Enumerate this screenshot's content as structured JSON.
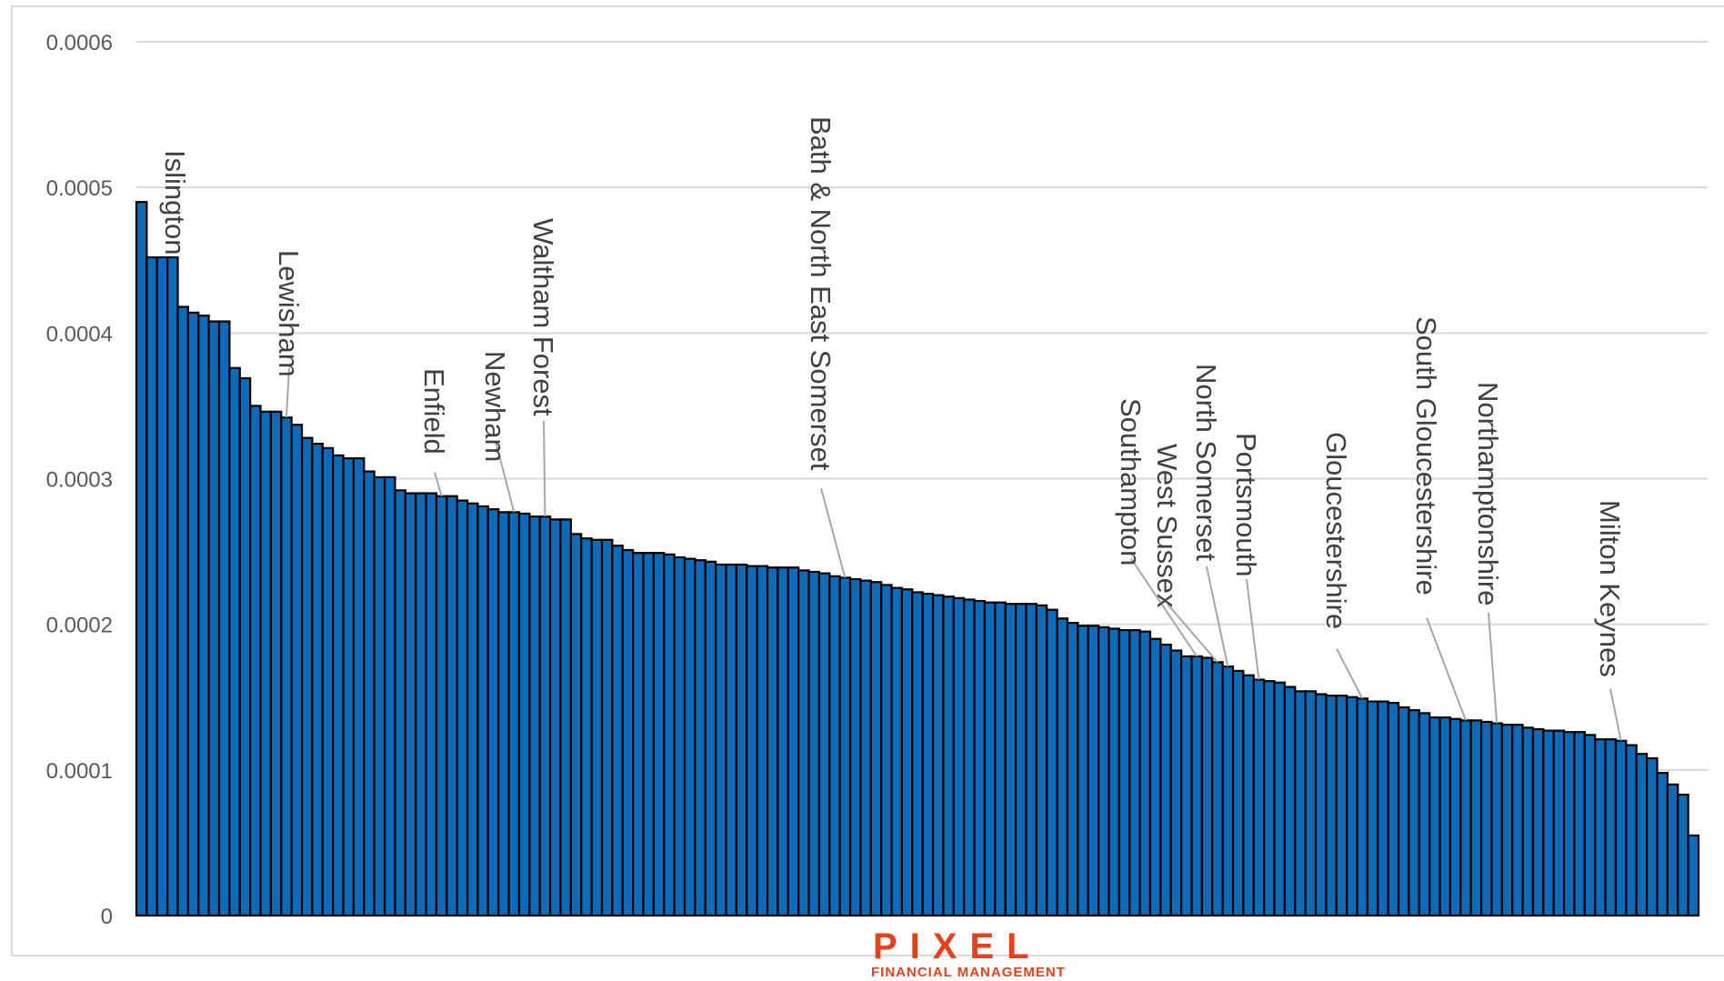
{
  "chart_data": {
    "type": "bar",
    "title": "",
    "xlabel": "",
    "ylabel": "",
    "ylim": [
      0,
      0.0006
    ],
    "yticks": [
      "0",
      "0.0001",
      "0.0002",
      "0.0003",
      "0.0004",
      "0.0005",
      "0.0006"
    ],
    "grid": true,
    "legend": "none",
    "bar_color": "#0f6bb7",
    "values": [
      0.00049,
      0.000452,
      0.000452,
      0.000452,
      0.000418,
      0.000414,
      0.000412,
      0.000408,
      0.000408,
      0.000376,
      0.000369,
      0.00035,
      0.000346,
      0.000346,
      0.000342,
      0.000337,
      0.000328,
      0.000324,
      0.000321,
      0.000316,
      0.000314,
      0.000314,
      0.000305,
      0.000301,
      0.000301,
      0.000292,
      0.00029,
      0.00029,
      0.00029,
      0.000288,
      0.000288,
      0.000285,
      0.000283,
      0.000281,
      0.000279,
      0.000277,
      0.000277,
      0.000276,
      0.000274,
      0.000274,
      0.000272,
      0.000272,
      0.000262,
      0.000259,
      0.000258,
      0.000258,
      0.000254,
      0.000251,
      0.000249,
      0.000249,
      0.000249,
      0.000248,
      0.000246,
      0.000245,
      0.000244,
      0.000243,
      0.000241,
      0.000241,
      0.000241,
      0.00024,
      0.00024,
      0.000239,
      0.000239,
      0.000239,
      0.000237,
      0.000236,
      0.000235,
      0.000233,
      0.000232,
      0.000231,
      0.00023,
      0.000229,
      0.000227,
      0.000225,
      0.000224,
      0.000222,
      0.000221,
      0.00022,
      0.000219,
      0.000218,
      0.000217,
      0.000216,
      0.000215,
      0.000215,
      0.000214,
      0.000214,
      0.000214,
      0.000213,
      0.00021,
      0.000204,
      0.000201,
      0.000199,
      0.000199,
      0.000198,
      0.000197,
      0.000196,
      0.000196,
      0.000195,
      0.00019,
      0.000186,
      0.000182,
      0.000178,
      0.000178,
      0.000177,
      0.000174,
      0.000171,
      0.000168,
      0.000165,
      0.000162,
      0.000161,
      0.00016,
      0.000157,
      0.000154,
      0.000154,
      0.000152,
      0.000151,
      0.000151,
      0.00015,
      0.000149,
      0.000147,
      0.000147,
      0.000146,
      0.000143,
      0.000141,
      0.000139,
      0.000136,
      0.000136,
      0.000135,
      0.000134,
      0.000134,
      0.000133,
      0.000132,
      0.000131,
      0.000131,
      0.000129,
      0.000128,
      0.000127,
      0.000127,
      0.000126,
      0.000126,
      0.000124,
      0.000121,
      0.000121,
      0.00012,
      0.000117,
      0.000111,
      0.000108,
      9.8e-05,
      9e-05,
      8.3e-05,
      5.5e-05
    ],
    "annotations": [
      {
        "text": "Islington",
        "bar": 2
      },
      {
        "text": "Lewisham",
        "bar": 14
      },
      {
        "text": "Enfield",
        "bar": 29
      },
      {
        "text": "Newham",
        "bar": 36
      },
      {
        "text": "Waltham Forest",
        "bar": 39
      },
      {
        "text": "Bath & North East Somerset",
        "bar": 68
      },
      {
        "text": "Southampton",
        "bar": 102
      },
      {
        "text": "West Sussex",
        "bar": 104
      },
      {
        "text": "North Somerset",
        "bar": 105
      },
      {
        "text": "Portsmouth",
        "bar": 108
      },
      {
        "text": "Gloucestershire",
        "bar": 118
      },
      {
        "text": "South Gloucestershire",
        "bar": 128
      },
      {
        "text": "Northamptonshire",
        "bar": 131
      },
      {
        "text": "Milton Keynes",
        "bar": 143
      }
    ]
  },
  "logo": {
    "word": "PIXEL",
    "subtitle": "FINANCIAL MANAGEMENT"
  }
}
